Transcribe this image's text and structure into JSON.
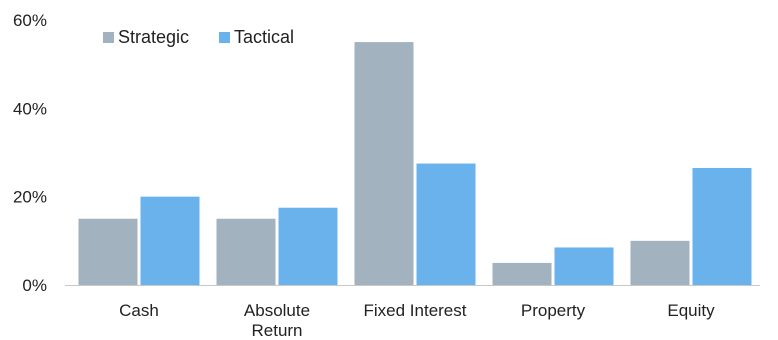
{
  "chart_data": {
    "type": "bar",
    "categories": [
      [
        "Cash"
      ],
      [
        "Absolute",
        "Return"
      ],
      [
        "Fixed Interest"
      ],
      [
        "Property"
      ],
      [
        "Equity"
      ]
    ],
    "series": [
      {
        "name": "Strategic",
        "color": "#a2b3bf",
        "values": [
          15,
          15,
          55,
          5,
          10
        ]
      },
      {
        "name": "Tactical",
        "color": "#69b2ec",
        "values": [
          20,
          17.5,
          27.5,
          8.5,
          26.5
        ]
      }
    ],
    "y_ticks": [
      "0%",
      "20%",
      "40%",
      "60%"
    ],
    "ylim": [
      0,
      60
    ],
    "legend_position": "top-left",
    "grid": false,
    "axis_color": "#c8c8c8"
  }
}
